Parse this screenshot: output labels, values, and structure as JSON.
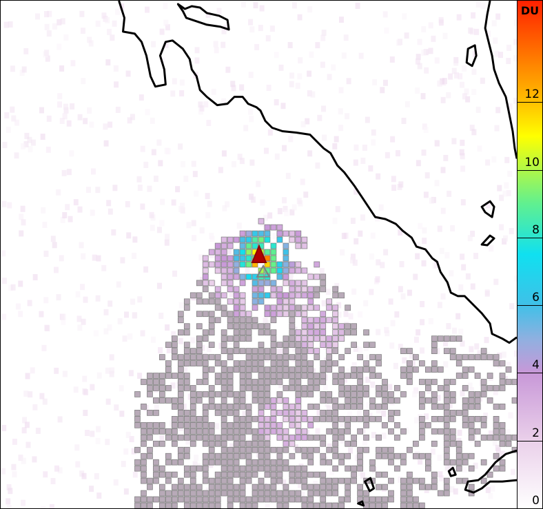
{
  "map": {
    "background_color": "#ffffff",
    "coastline_color": "#000000",
    "plume_cell_outline": "#7a7a7a",
    "volcano_marker": {
      "shape": "triangle",
      "color": "#b00000"
    }
  },
  "colorbar": {
    "unit": "DU",
    "range": [
      0,
      15
    ],
    "ticks": [
      {
        "value": 0,
        "label": "0"
      },
      {
        "value": 2,
        "label": "2"
      },
      {
        "value": 4,
        "label": "4"
      },
      {
        "value": 6,
        "label": "6"
      },
      {
        "value": 8,
        "label": "8"
      },
      {
        "value": 10,
        "label": "10"
      },
      {
        "value": 12,
        "label": "12"
      }
    ],
    "colormap": [
      {
        "value": 0,
        "color": "#ffffff"
      },
      {
        "value": 2,
        "color": "#ead0ea"
      },
      {
        "value": 4,
        "color": "#c898d8"
      },
      {
        "value": 5,
        "color": "#90b0e0"
      },
      {
        "value": 6,
        "color": "#40c0e8"
      },
      {
        "value": 7.5,
        "color": "#10e0f0"
      },
      {
        "value": 9,
        "color": "#60f090"
      },
      {
        "value": 11,
        "color": "#ffff00"
      },
      {
        "value": 12,
        "color": "#ffc000"
      },
      {
        "value": 15,
        "color": "#ff2000"
      }
    ]
  }
}
